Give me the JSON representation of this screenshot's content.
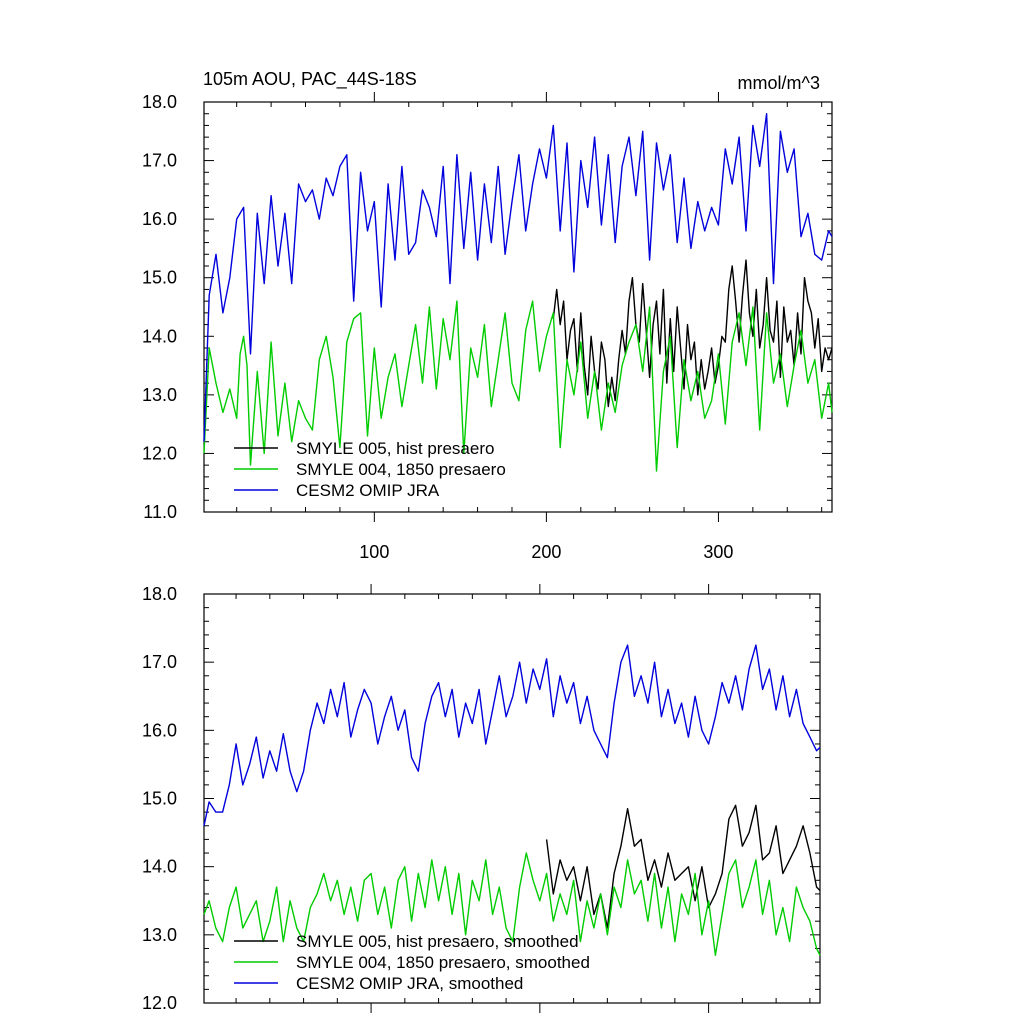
{
  "figure": {
    "title": "105m AOU, PAC_44S-18S",
    "units": "mmol/m^3"
  },
  "chart_data": [
    {
      "type": "line",
      "panel": "top",
      "xlim": [
        1,
        366
      ],
      "ylim": [
        11.0,
        18.0
      ],
      "x_ticks": [
        100,
        200,
        300
      ],
      "x_tick_labels": [
        "100",
        "200",
        "300"
      ],
      "y_ticks": [
        11,
        12,
        13,
        14,
        15,
        16,
        17,
        18
      ],
      "y_tick_labels": [
        "11.0",
        "12.0",
        "13.0",
        "14.0",
        "15.0",
        "16.0",
        "17.0",
        "18.0"
      ],
      "legend_position": "bottom-left",
      "series": [
        {
          "name": "SMYLE 005, hist presaero",
          "color": "#000000",
          "x": [
            204,
            206,
            208,
            210,
            212,
            214,
            216,
            218,
            220,
            222,
            224,
            226,
            228,
            230,
            232,
            234,
            236,
            238,
            240,
            242,
            244,
            246,
            248,
            250,
            252,
            254,
            256,
            258,
            260,
            262,
            264,
            266,
            268,
            270,
            272,
            274,
            276,
            278,
            280,
            282,
            284,
            286,
            288,
            290,
            292,
            294,
            296,
            298,
            300,
            302,
            304,
            306,
            308,
            310,
            312,
            314,
            316,
            318,
            320,
            322,
            324,
            326,
            328,
            330,
            332,
            334,
            336,
            338,
            340,
            342,
            344,
            346,
            348,
            350,
            352,
            354,
            356,
            358,
            360,
            362,
            364,
            366
          ],
          "values": [
            14.3,
            14.8,
            14.2,
            14.6,
            13.6,
            14.1,
            14.3,
            13.4,
            14.4,
            13.5,
            13.0,
            14.0,
            13.4,
            13.1,
            13.9,
            13.6,
            12.8,
            13.3,
            12.9,
            13.6,
            14.1,
            13.7,
            14.6,
            15.0,
            14.2,
            13.9,
            14.9,
            14.1,
            13.3,
            14.2,
            14.6,
            13.7,
            14.8,
            13.2,
            14.3,
            13.4,
            14.5,
            13.8,
            13.1,
            14.2,
            13.6,
            13.9,
            13.0,
            13.6,
            13.1,
            13.4,
            13.8,
            13.2,
            13.5,
            14.0,
            13.9,
            14.8,
            15.2,
            14.6,
            13.9,
            14.7,
            15.3,
            14.4,
            14.0,
            14.8,
            13.8,
            14.2,
            15.0,
            14.1,
            13.9,
            14.6,
            13.3,
            14.5,
            13.9,
            14.1,
            13.5,
            14.4,
            13.7,
            15.0,
            14.6,
            14.4,
            13.8,
            14.3,
            13.4,
            13.8,
            13.6,
            13.8
          ]
        },
        {
          "name": "SMYLE 004, 1850 presaero",
          "color": "#00cc00",
          "x": [
            1,
            4,
            8,
            12,
            16,
            20,
            22,
            24,
            26,
            28,
            32,
            36,
            40,
            44,
            48,
            52,
            56,
            60,
            64,
            68,
            72,
            76,
            80,
            84,
            88,
            92,
            96,
            100,
            104,
            108,
            112,
            116,
            120,
            124,
            128,
            132,
            136,
            140,
            144,
            148,
            152,
            156,
            160,
            164,
            168,
            172,
            176,
            180,
            184,
            188,
            192,
            196,
            200,
            204,
            208,
            212,
            216,
            220,
            224,
            228,
            232,
            236,
            240,
            244,
            248,
            252,
            256,
            260,
            264,
            268,
            272,
            276,
            280,
            284,
            288,
            292,
            296,
            300,
            304,
            308,
            312,
            316,
            320,
            324,
            328,
            332,
            336,
            340,
            344,
            348,
            352,
            356,
            360,
            364,
            366
          ],
          "values": [
            12.0,
            13.8,
            13.2,
            12.7,
            13.1,
            12.6,
            13.7,
            14.0,
            13.5,
            11.8,
            13.4,
            12.0,
            13.9,
            12.3,
            13.2,
            12.2,
            12.9,
            12.6,
            12.4,
            13.6,
            14.0,
            13.3,
            12.1,
            13.9,
            14.3,
            14.4,
            12.3,
            13.8,
            12.6,
            13.3,
            13.7,
            12.8,
            13.5,
            14.2,
            13.2,
            14.5,
            13.1,
            14.3,
            13.6,
            14.6,
            12.0,
            13.8,
            13.3,
            14.2,
            12.8,
            13.6,
            14.4,
            13.2,
            12.9,
            14.1,
            14.6,
            13.4,
            14.0,
            14.4,
            12.1,
            13.6,
            13.0,
            13.9,
            12.6,
            13.4,
            12.4,
            13.2,
            12.7,
            13.5,
            13.9,
            14.2,
            13.4,
            14.5,
            11.7,
            13.4,
            14.0,
            12.1,
            13.6,
            12.9,
            13.4,
            12.6,
            12.9,
            13.7,
            12.5,
            13.9,
            14.4,
            13.5,
            14.5,
            12.4,
            14.4,
            13.2,
            13.7,
            12.8,
            13.5,
            14.1,
            13.2,
            13.6,
            12.6,
            13.2,
            12.7
          ]
        },
        {
          "name": "CESM2 OMIP JRA",
          "color": "#0000dd",
          "x": [
            1,
            4,
            8,
            12,
            16,
            20,
            24,
            28,
            32,
            36,
            40,
            44,
            48,
            52,
            56,
            60,
            64,
            68,
            72,
            76,
            80,
            84,
            88,
            92,
            96,
            100,
            104,
            108,
            112,
            116,
            120,
            124,
            128,
            132,
            136,
            140,
            144,
            148,
            152,
            156,
            160,
            164,
            168,
            172,
            176,
            180,
            184,
            188,
            192,
            196,
            200,
            204,
            208,
            212,
            216,
            220,
            224,
            228,
            232,
            236,
            240,
            244,
            248,
            252,
            256,
            260,
            264,
            268,
            272,
            276,
            280,
            284,
            288,
            292,
            296,
            300,
            304,
            308,
            312,
            316,
            320,
            324,
            328,
            332,
            336,
            340,
            344,
            348,
            352,
            356,
            360,
            364,
            366
          ],
          "values": [
            12.2,
            14.7,
            15.4,
            14.4,
            15.0,
            16.0,
            16.2,
            13.7,
            16.1,
            14.9,
            16.4,
            15.2,
            16.1,
            14.9,
            16.6,
            16.3,
            16.5,
            16.0,
            16.7,
            16.4,
            16.9,
            17.1,
            14.6,
            16.8,
            15.8,
            16.3,
            14.5,
            16.6,
            15.3,
            16.9,
            15.4,
            15.6,
            16.5,
            16.2,
            15.7,
            16.9,
            14.9,
            17.1,
            15.5,
            16.8,
            15.3,
            16.6,
            15.6,
            16.9,
            15.4,
            16.3,
            17.1,
            15.8,
            16.6,
            17.2,
            16.7,
            17.6,
            15.8,
            17.3,
            15.1,
            17.0,
            16.2,
            17.4,
            15.9,
            17.1,
            15.6,
            16.9,
            17.4,
            16.4,
            17.5,
            15.3,
            17.3,
            16.5,
            17.1,
            15.6,
            16.7,
            15.5,
            16.3,
            15.8,
            16.2,
            15.9,
            17.2,
            16.6,
            17.4,
            15.8,
            17.6,
            16.9,
            17.8,
            14.9,
            17.5,
            16.8,
            17.2,
            15.7,
            16.1,
            15.4,
            15.3,
            15.8,
            15.7
          ]
        }
      ]
    },
    {
      "type": "line",
      "panel": "bottom",
      "xlim": [
        1,
        366
      ],
      "ylim": [
        12.0,
        18.0
      ],
      "x_ticks": [
        100,
        200,
        300
      ],
      "x_tick_labels": [],
      "y_ticks": [
        12,
        13,
        14,
        15,
        16,
        17,
        18
      ],
      "y_tick_labels": [
        "12.0",
        "13.0",
        "14.0",
        "15.0",
        "16.0",
        "17.0",
        "18.0"
      ],
      "legend_position": "bottom-left",
      "series": [
        {
          "name": "SMYLE 005, hist presaero, smoothed",
          "color": "#000000",
          "x": [
            204,
            208,
            212,
            216,
            220,
            224,
            228,
            232,
            236,
            240,
            244,
            248,
            252,
            256,
            260,
            264,
            268,
            272,
            276,
            280,
            284,
            288,
            292,
            296,
            300,
            304,
            308,
            312,
            316,
            320,
            324,
            328,
            332,
            336,
            340,
            344,
            348,
            352,
            356,
            360,
            364,
            366
          ],
          "values": [
            14.4,
            13.6,
            14.1,
            13.8,
            14.0,
            13.5,
            14.0,
            13.3,
            13.6,
            13.1,
            13.9,
            14.3,
            14.85,
            14.3,
            14.4,
            13.8,
            14.1,
            13.7,
            14.2,
            13.8,
            13.9,
            14.0,
            13.5,
            14.0,
            13.4,
            13.6,
            13.9,
            14.7,
            14.9,
            14.3,
            14.5,
            14.9,
            14.1,
            14.2,
            14.6,
            13.9,
            14.1,
            14.3,
            14.6,
            14.2,
            13.7,
            13.65
          ]
        },
        {
          "name": "SMYLE 004, 1850 presaero, smoothed",
          "color": "#00cc00",
          "x": [
            1,
            4,
            8,
            12,
            16,
            20,
            24,
            28,
            32,
            36,
            40,
            44,
            48,
            52,
            56,
            60,
            64,
            68,
            72,
            76,
            80,
            84,
            88,
            92,
            96,
            100,
            104,
            108,
            112,
            116,
            120,
            124,
            128,
            132,
            136,
            140,
            144,
            148,
            152,
            156,
            160,
            164,
            168,
            172,
            176,
            180,
            184,
            188,
            192,
            196,
            200,
            204,
            208,
            212,
            216,
            220,
            224,
            228,
            232,
            236,
            240,
            244,
            248,
            252,
            256,
            260,
            264,
            268,
            272,
            276,
            280,
            284,
            288,
            292,
            296,
            300,
            304,
            308,
            312,
            316,
            320,
            324,
            328,
            332,
            336,
            340,
            344,
            348,
            352,
            356,
            360,
            364,
            366
          ],
          "values": [
            13.3,
            13.5,
            13.1,
            12.9,
            13.4,
            13.7,
            13.1,
            13.3,
            13.5,
            12.9,
            13.2,
            13.7,
            12.9,
            13.5,
            13.1,
            12.9,
            13.4,
            13.6,
            13.9,
            13.5,
            13.8,
            13.3,
            13.7,
            13.2,
            13.8,
            13.9,
            13.3,
            13.7,
            13.1,
            13.8,
            14.0,
            13.2,
            13.9,
            13.4,
            14.1,
            13.5,
            14.0,
            13.3,
            13.9,
            13.0,
            13.8,
            13.5,
            14.1,
            13.3,
            13.7,
            13.1,
            12.9,
            13.7,
            14.2,
            13.8,
            13.5,
            13.9,
            13.2,
            13.6,
            13.3,
            13.8,
            12.9,
            13.5,
            13.1,
            13.6,
            13.0,
            13.7,
            13.4,
            14.1,
            13.6,
            13.8,
            13.2,
            13.9,
            13.1,
            13.7,
            12.9,
            13.6,
            13.3,
            13.9,
            13.0,
            13.5,
            12.7,
            13.3,
            13.9,
            14.1,
            13.4,
            13.7,
            14.1,
            13.3,
            13.8,
            13.0,
            13.4,
            12.9,
            13.7,
            13.4,
            13.2,
            12.8,
            12.7
          ]
        },
        {
          "name": "CESM2 OMIP JRA, smoothed",
          "color": "#0000dd",
          "x": [
            1,
            4,
            8,
            12,
            16,
            20,
            24,
            28,
            32,
            36,
            40,
            44,
            48,
            52,
            56,
            60,
            64,
            68,
            72,
            76,
            80,
            84,
            88,
            92,
            96,
            100,
            104,
            108,
            112,
            116,
            120,
            124,
            128,
            132,
            136,
            140,
            144,
            148,
            152,
            156,
            160,
            164,
            168,
            172,
            176,
            180,
            184,
            188,
            192,
            196,
            200,
            204,
            208,
            212,
            216,
            220,
            224,
            228,
            232,
            236,
            240,
            244,
            248,
            252,
            256,
            260,
            264,
            268,
            272,
            276,
            280,
            284,
            288,
            292,
            296,
            300,
            304,
            308,
            312,
            316,
            320,
            324,
            328,
            332,
            336,
            340,
            344,
            348,
            352,
            356,
            360,
            364,
            366
          ],
          "values": [
            14.6,
            14.95,
            14.8,
            14.8,
            15.2,
            15.8,
            15.2,
            15.5,
            15.9,
            15.3,
            15.7,
            15.4,
            15.95,
            15.4,
            15.1,
            15.4,
            16.0,
            16.4,
            16.1,
            16.6,
            16.2,
            16.7,
            15.9,
            16.3,
            16.6,
            16.4,
            15.8,
            16.2,
            16.5,
            16.0,
            16.3,
            15.6,
            15.4,
            16.1,
            16.5,
            16.7,
            16.2,
            16.6,
            15.9,
            16.4,
            16.1,
            16.6,
            15.8,
            16.3,
            16.8,
            16.2,
            16.5,
            17.0,
            16.4,
            16.9,
            16.6,
            17.05,
            16.2,
            16.8,
            16.4,
            16.7,
            16.1,
            16.5,
            16.0,
            15.8,
            15.6,
            16.4,
            17.0,
            17.25,
            16.5,
            16.8,
            16.4,
            17.0,
            16.2,
            16.6,
            16.1,
            16.4,
            15.9,
            16.5,
            16.0,
            15.8,
            16.2,
            16.7,
            16.4,
            16.8,
            16.3,
            16.9,
            17.25,
            16.6,
            16.9,
            16.3,
            16.8,
            16.2,
            16.6,
            16.1,
            15.9,
            15.7,
            15.75
          ]
        }
      ]
    }
  ]
}
